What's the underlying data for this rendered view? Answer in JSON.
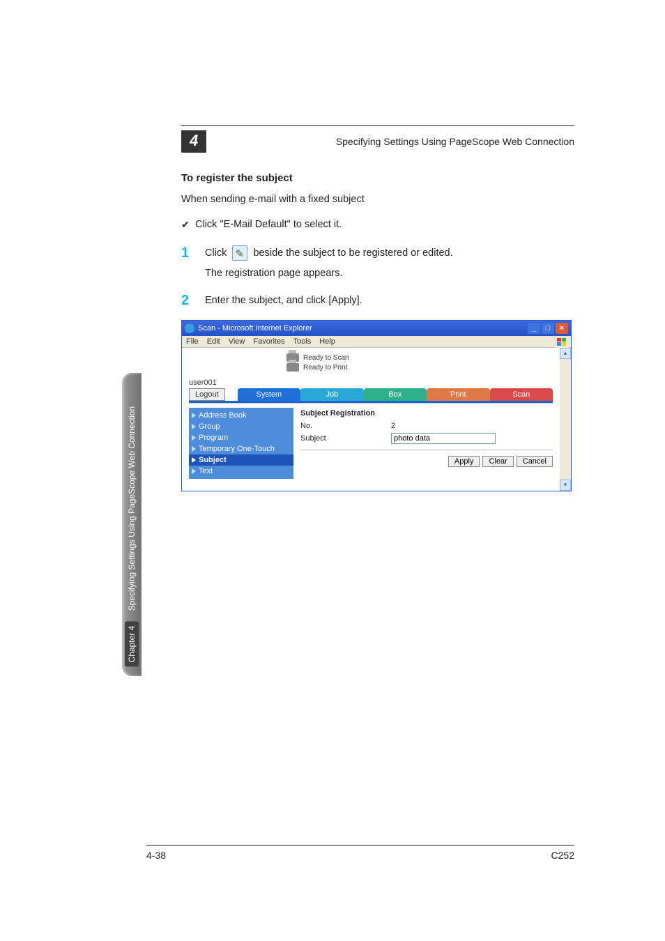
{
  "header": {
    "chapter": "4",
    "title": "Specifying Settings Using PageScope Web Connection"
  },
  "section": {
    "heading": "To register the subject",
    "intro": "When sending e-mail with a fixed subject",
    "checklist": [
      "Click \"E-Mail Default\" to select it."
    ],
    "steps": [
      {
        "num": "1",
        "text_before": "Click ",
        "has_icon": true,
        "text_after": " beside the subject to be registered or edited.",
        "sub": "The registration page appears."
      },
      {
        "num": "2",
        "text_before": "Enter the subject, and click [Apply].",
        "has_icon": false,
        "text_after": "",
        "sub": ""
      }
    ]
  },
  "browser": {
    "title": "Scan - Microsoft Internet Explorer",
    "menus": [
      "File",
      "Edit",
      "View",
      "Favorites",
      "Tools",
      "Help"
    ],
    "status": {
      "line1": "Ready to Scan",
      "line2": "Ready to Print"
    },
    "user": "user001",
    "logout": "Logout",
    "tabs": [
      {
        "label": "System",
        "color": "#1f6fd6"
      },
      {
        "label": "Job",
        "color": "#2aa8d8"
      },
      {
        "label": "Box",
        "color": "#2fb08a"
      },
      {
        "label": "Print",
        "color": "#e07847"
      },
      {
        "label": "Scan",
        "color": "#d94b4b"
      }
    ],
    "nav": [
      {
        "label": "Address Book",
        "active": false
      },
      {
        "label": "Group",
        "active": false
      },
      {
        "label": "Program",
        "active": false
      },
      {
        "label": "Temporary One-Touch",
        "active": false
      },
      {
        "label": "Subject",
        "active": true
      },
      {
        "label": "Text",
        "active": false
      }
    ],
    "pane": {
      "title": "Subject Registration",
      "no_label": "No.",
      "no_value": "2",
      "subject_label": "Subject",
      "subject_value": "photo data",
      "buttons": [
        "Apply",
        "Clear",
        "Cancel"
      ]
    }
  },
  "side": {
    "chapter": "Chapter 4",
    "text": "Specifying Settings Using PageScope Web Connection"
  },
  "footer": {
    "left": "4-38",
    "right": "C252"
  }
}
